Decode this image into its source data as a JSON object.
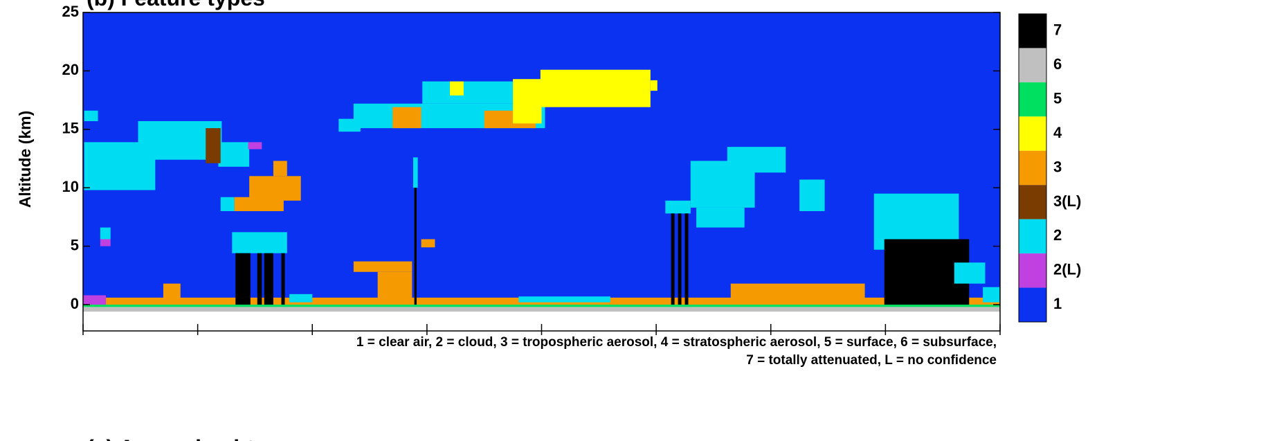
{
  "chart_data": {
    "type": "feature-map",
    "title": "(b) Feature types",
    "next_title": "(c) Aerosol subtype",
    "y_label": "Altitude (km)",
    "ylim": [
      -2.25,
      25
    ],
    "yticks": [
      0,
      5,
      10,
      15,
      20,
      25
    ],
    "xlim": [
      0,
      8
    ],
    "xticks": [
      0,
      1,
      2,
      3,
      4,
      5,
      6,
      7,
      8
    ],
    "legend": [
      {
        "label": "7",
        "color": "#000000"
      },
      {
        "label": "6",
        "color": "#c0c0c0"
      },
      {
        "label": "5",
        "color": "#00e060"
      },
      {
        "label": "4",
        "color": "#ffff00"
      },
      {
        "label": "3",
        "color": "#f59a00"
      },
      {
        "label": "3(L)",
        "color": "#7a3c00"
      },
      {
        "label": "2",
        "color": "#00dcf2"
      },
      {
        "label": "2(L)",
        "color": "#c040e0"
      },
      {
        "label": "1",
        "color": "#0a32f0"
      }
    ],
    "notes": [
      "1 = clear air, 2 = cloud, 3 = tropospheric aerosol, 4 = stratospheric aerosol, 5 = surface, 6 = subsurface,",
      "7 = totally attenuated, L = no confidence"
    ],
    "features": [
      {
        "class": "1",
        "x": [
          0,
          8
        ],
        "alt": [
          0,
          25
        ]
      },
      {
        "class": "6",
        "x": [
          0,
          8
        ],
        "alt": [
          -0.6,
          -0.2
        ]
      },
      {
        "class": "5",
        "x": [
          0,
          8
        ],
        "alt": [
          -0.2,
          0
        ]
      },
      {
        "class": "3",
        "x": [
          0,
          8
        ],
        "alt": [
          0,
          0.6
        ]
      },
      {
        "class": "2",
        "x": [
          0.01,
          0.63
        ],
        "alt": [
          9.8,
          13.9
        ]
      },
      {
        "class": "2",
        "x": [
          0.48,
          1.21
        ],
        "alt": [
          12.4,
          15.7
        ]
      },
      {
        "class": "2",
        "x": [
          1.18,
          1.45
        ],
        "alt": [
          11.8,
          13.9
        ]
      },
      {
        "class": "2",
        "x": [
          0.01,
          0.13
        ],
        "alt": [
          15.7,
          16.6
        ]
      },
      {
        "class": "3(L)",
        "x": [
          1.07,
          1.2
        ],
        "alt": [
          12.1,
          15.1
        ]
      },
      {
        "class": "2(L)",
        "x": [
          1.44,
          1.56
        ],
        "alt": [
          13.3,
          13.9
        ]
      },
      {
        "class": "3",
        "x": [
          1.45,
          1.9
        ],
        "alt": [
          8.9,
          11.0
        ]
      },
      {
        "class": "3",
        "x": [
          1.32,
          1.75
        ],
        "alt": [
          8.0,
          9.2
        ]
      },
      {
        "class": "3",
        "x": [
          1.66,
          1.78
        ],
        "alt": [
          11.0,
          12.3
        ]
      },
      {
        "class": "2",
        "x": [
          1.2,
          1.32
        ],
        "alt": [
          8.0,
          9.2
        ]
      },
      {
        "class": "2",
        "x": [
          2.23,
          2.42
        ],
        "alt": [
          14.8,
          15.9
        ]
      },
      {
        "class": "2",
        "x": [
          2.36,
          4.03
        ],
        "alt": [
          15.1,
          17.2
        ]
      },
      {
        "class": "3",
        "x": [
          2.7,
          2.95
        ],
        "alt": [
          15.1,
          16.9
        ]
      },
      {
        "class": "3",
        "x": [
          3.5,
          3.95
        ],
        "alt": [
          15.1,
          16.6
        ]
      },
      {
        "class": "2",
        "x": [
          2.96,
          3.86
        ],
        "alt": [
          17.2,
          19.1
        ]
      },
      {
        "class": "4",
        "x": [
          3.2,
          3.32
        ],
        "alt": [
          17.9,
          19.1
        ]
      },
      {
        "class": "4",
        "x": [
          3.99,
          4.95
        ],
        "alt": [
          16.9,
          20.1
        ]
      },
      {
        "class": "4",
        "x": [
          3.75,
          4.0
        ],
        "alt": [
          15.5,
          19.3
        ]
      },
      {
        "class": "4",
        "x": [
          4.95,
          5.01
        ],
        "alt": [
          18.3,
          19.2
        ]
      },
      {
        "class": "2",
        "x": [
          2.88,
          2.92
        ],
        "alt": [
          10,
          12.6
        ]
      },
      {
        "class": "7",
        "x": [
          2.89,
          2.91
        ],
        "alt": [
          0,
          10
        ]
      },
      {
        "class": "2",
        "x": [
          5.3,
          5.86
        ],
        "alt": [
          8.3,
          12.3
        ]
      },
      {
        "class": "2",
        "x": [
          5.35,
          5.77
        ],
        "alt": [
          6.6,
          8.3
        ]
      },
      {
        "class": "2",
        "x": [
          5.62,
          6.13
        ],
        "alt": [
          11.3,
          13.5
        ]
      },
      {
        "class": "2",
        "x": [
          5.08,
          5.3
        ],
        "alt": [
          7.8,
          8.9
        ]
      },
      {
        "class": "7",
        "x": [
          5.13,
          5.16
        ],
        "alt": [
          0,
          7.8
        ]
      },
      {
        "class": "7",
        "x": [
          5.19,
          5.22
        ],
        "alt": [
          0,
          7.8
        ]
      },
      {
        "class": "7",
        "x": [
          5.25,
          5.28
        ],
        "alt": [
          0,
          7.8
        ]
      },
      {
        "class": "2",
        "x": [
          6.25,
          6.47
        ],
        "alt": [
          8.0,
          10.7
        ]
      },
      {
        "class": "2",
        "x": [
          6.9,
          7.64
        ],
        "alt": [
          4.7,
          9.5
        ]
      },
      {
        "class": "7",
        "x": [
          6.99,
          7.73
        ],
        "alt": [
          0,
          5.6
        ]
      },
      {
        "class": "2",
        "x": [
          7.6,
          7.87
        ],
        "alt": [
          1.8,
          3.6
        ]
      },
      {
        "class": "2",
        "x": [
          1.3,
          1.78
        ],
        "alt": [
          4.4,
          6.2
        ]
      },
      {
        "class": "7",
        "x": [
          1.33,
          1.46
        ],
        "alt": [
          0,
          4.4
        ]
      },
      {
        "class": "7",
        "x": [
          1.52,
          1.56
        ],
        "alt": [
          0,
          4.4
        ]
      },
      {
        "class": "7",
        "x": [
          1.58,
          1.66
        ],
        "alt": [
          0,
          4.4
        ]
      },
      {
        "class": "7",
        "x": [
          1.73,
          1.76
        ],
        "alt": [
          0,
          4.4
        ]
      },
      {
        "class": "3",
        "x": [
          2.36,
          2.87
        ],
        "alt": [
          2.8,
          3.7
        ]
      },
      {
        "class": "3",
        "x": [
          2.57,
          2.87
        ],
        "alt": [
          0,
          2.8
        ]
      },
      {
        "class": "3",
        "x": [
          2.95,
          3.07
        ],
        "alt": [
          4.9,
          5.6
        ]
      },
      {
        "class": "3",
        "x": [
          5.65,
          6.82
        ],
        "alt": [
          0,
          1.8
        ]
      },
      {
        "class": "3",
        "x": [
          0.7,
          0.85
        ],
        "alt": [
          0,
          1.8
        ]
      },
      {
        "class": "2",
        "x": [
          0.15,
          0.24
        ],
        "alt": [
          5.6,
          6.6
        ]
      },
      {
        "class": "2(L)",
        "x": [
          0.15,
          0.24
        ],
        "alt": [
          5.0,
          5.6
        ]
      },
      {
        "class": "2(L)",
        "x": [
          0.0,
          0.2
        ],
        "alt": [
          0,
          0.8
        ]
      },
      {
        "class": "2",
        "x": [
          1.8,
          2.0
        ],
        "alt": [
          0.2,
          0.9
        ]
      },
      {
        "class": "2",
        "x": [
          3.8,
          4.6
        ],
        "alt": [
          0.2,
          0.7
        ]
      },
      {
        "class": "2",
        "x": [
          7.85,
          8.0
        ],
        "alt": [
          0.2,
          1.5
        ]
      }
    ]
  }
}
